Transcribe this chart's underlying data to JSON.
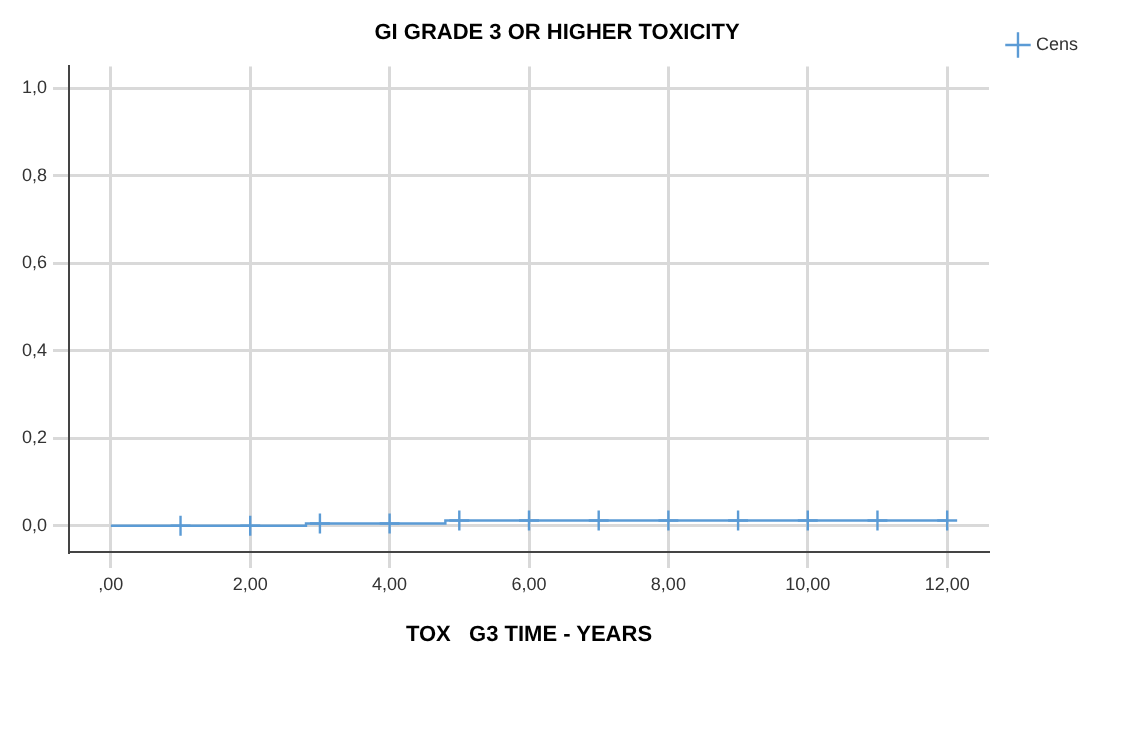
{
  "chart_data": {
    "type": "step",
    "title": "GI GRADE 3 OR HIGHER TOXICITY",
    "xlabel": "TOX   G3 TIME - YEARS",
    "xlim": [
      -0.6,
      12.6
    ],
    "ylim": [
      -0.06,
      1.05
    ],
    "xticks": [
      {
        "value": 0,
        "label": ",00"
      },
      {
        "value": 2,
        "label": "2,00"
      },
      {
        "value": 4,
        "label": "4,00"
      },
      {
        "value": 6,
        "label": "6,00"
      },
      {
        "value": 8,
        "label": "8,00"
      },
      {
        "value": 10,
        "label": "10,00"
      },
      {
        "value": 12,
        "label": "12,00"
      }
    ],
    "yticks": [
      {
        "value": 0,
        "label": "0,0"
      },
      {
        "value": 0.2,
        "label": "0,2"
      },
      {
        "value": 0.4,
        "label": "0,4"
      },
      {
        "value": 0.6,
        "label": "0,6"
      },
      {
        "value": 0.8,
        "label": "0,8"
      },
      {
        "value": 1,
        "label": "1,0"
      }
    ],
    "grid": true,
    "legend": "top right",
    "series": [
      {
        "color": "#5b9bd5",
        "marker": "none",
        "x": [
          0,
          2.8,
          4.8,
          12
        ],
        "values": [
          0,
          0.005,
          0.012,
          0.012
        ]
      },
      {
        "type": "scatter",
        "name": "Cens",
        "color": "#5b9bd5",
        "marker": "cross",
        "x": [
          1,
          2,
          3,
          4,
          5,
          6,
          7,
          8,
          9,
          10,
          11,
          12
        ],
        "values": [
          0,
          0,
          0.005,
          0.005,
          0.012,
          0.012,
          0.012,
          0.012,
          0.012,
          0.012,
          0.012,
          0.012
        ]
      }
    ]
  }
}
